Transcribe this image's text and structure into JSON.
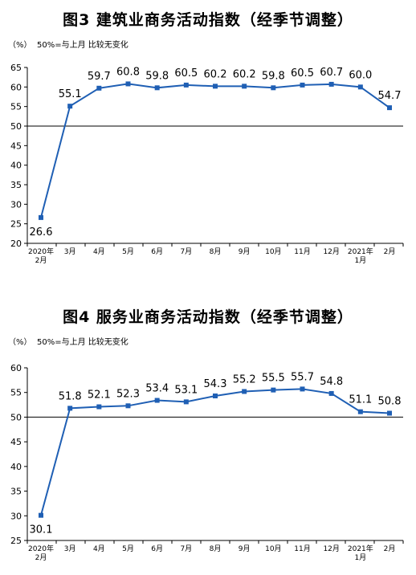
{
  "chart_data": [
    {
      "type": "line",
      "title": "图3  建筑业商务活动指数（经季节调整）",
      "unit": "（%）",
      "note": "50%=与上月 比较无变化",
      "categories": [
        "2020年\n2月",
        "3月",
        "4月",
        "5月",
        "6月",
        "7月",
        "8月",
        "9月",
        "10月",
        "11月",
        "12月",
        "2021年\n1月",
        "2月"
      ],
      "values": [
        26.6,
        55.1,
        59.7,
        60.8,
        59.8,
        60.5,
        60.2,
        60.2,
        59.8,
        60.5,
        60.7,
        60.0,
        54.7
      ],
      "labels": [
        "26.6",
        "55.1",
        "59.7",
        "60.8",
        "59.8",
        "60.5",
        "60.2",
        "60.2",
        "59.8",
        "60.5",
        "60.7",
        "60.0",
        "54.7"
      ],
      "ylim": [
        20,
        65
      ],
      "yticks": [
        "20",
        "25",
        "30",
        "35",
        "40",
        "45",
        "50",
        "55",
        "60",
        "65"
      ],
      "reference_line": 50,
      "color": "#1f5fb4"
    },
    {
      "type": "line",
      "title": "图4  服务业商务活动指数（经季节调整）",
      "unit": "（%）",
      "note": "50%=与上月 比较无变化",
      "categories": [
        "2020年\n2月",
        "3月",
        "4月",
        "5月",
        "6月",
        "7月",
        "8月",
        "9月",
        "10月",
        "11月",
        "12月",
        "2021年\n1月",
        "2月"
      ],
      "values": [
        30.1,
        51.8,
        52.1,
        52.3,
        53.4,
        53.1,
        54.3,
        55.2,
        55.5,
        55.7,
        54.8,
        51.1,
        50.8
      ],
      "labels": [
        "30.1",
        "51.8",
        "52.1",
        "52.3",
        "53.4",
        "53.1",
        "54.3",
        "55.2",
        "55.5",
        "55.7",
        "54.8",
        "51.1",
        "50.8"
      ],
      "ylim": [
        25,
        60
      ],
      "yticks": [
        "25",
        "30",
        "35",
        "40",
        "45",
        "50",
        "55",
        "60"
      ],
      "reference_line": 50,
      "color": "#1f5fb4"
    }
  ]
}
